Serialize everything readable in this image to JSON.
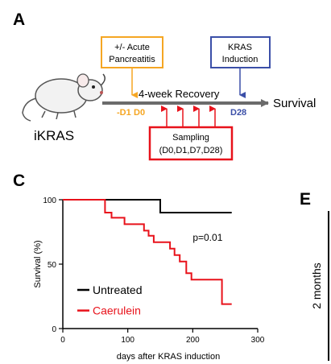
{
  "panels": {
    "a": "A",
    "c": "C",
    "e": "E"
  },
  "schematic": {
    "mouse_label": "iKRAS",
    "acute_box": [
      "+/- Acute",
      "Pancreatitis"
    ],
    "kras_box": [
      "KRAS",
      "Induction"
    ],
    "recovery_label": "4-week Recovery",
    "day_minus1": "-D1",
    "day0": "D0",
    "day28": "D28",
    "survival_label": "Survival",
    "sampling_box": [
      "Sampling",
      "(D0,D1,D7,D28)"
    ],
    "colors": {
      "acute": "#f5a623",
      "kras": "#3b4fa8",
      "sampling": "#e8121b",
      "arrow": "#6b6b6b"
    }
  },
  "chart_data": {
    "type": "line",
    "subtype": "kaplan-meier step",
    "xlabel": "days after KRAS induction",
    "ylabel": "Survival (%)",
    "xlim": [
      0,
      300
    ],
    "ylim": [
      0,
      100
    ],
    "xticks": [
      0,
      100,
      200,
      300
    ],
    "yticks": [
      0,
      50,
      100
    ],
    "annotation": "p=0.01",
    "legend_position": "lower-left",
    "series": [
      {
        "name": "Untreated",
        "color": "#000000",
        "steps": [
          [
            0,
            100
          ],
          [
            150,
            100
          ],
          [
            150,
            90
          ],
          [
            260,
            90
          ]
        ]
      },
      {
        "name": "Caerulein",
        "color": "#e8121b",
        "steps": [
          [
            0,
            100
          ],
          [
            65,
            100
          ],
          [
            65,
            90
          ],
          [
            75,
            90
          ],
          [
            75,
            86
          ],
          [
            95,
            86
          ],
          [
            95,
            81
          ],
          [
            125,
            81
          ],
          [
            125,
            76
          ],
          [
            132,
            76
          ],
          [
            132,
            72
          ],
          [
            140,
            72
          ],
          [
            140,
            67
          ],
          [
            165,
            67
          ],
          [
            165,
            62
          ],
          [
            172,
            62
          ],
          [
            172,
            57
          ],
          [
            180,
            57
          ],
          [
            180,
            52
          ],
          [
            190,
            52
          ],
          [
            190,
            43
          ],
          [
            198,
            43
          ],
          [
            198,
            38
          ],
          [
            245,
            38
          ],
          [
            245,
            19
          ],
          [
            260,
            19
          ]
        ]
      }
    ]
  },
  "panel_e": {
    "axis_label": "2 months"
  }
}
